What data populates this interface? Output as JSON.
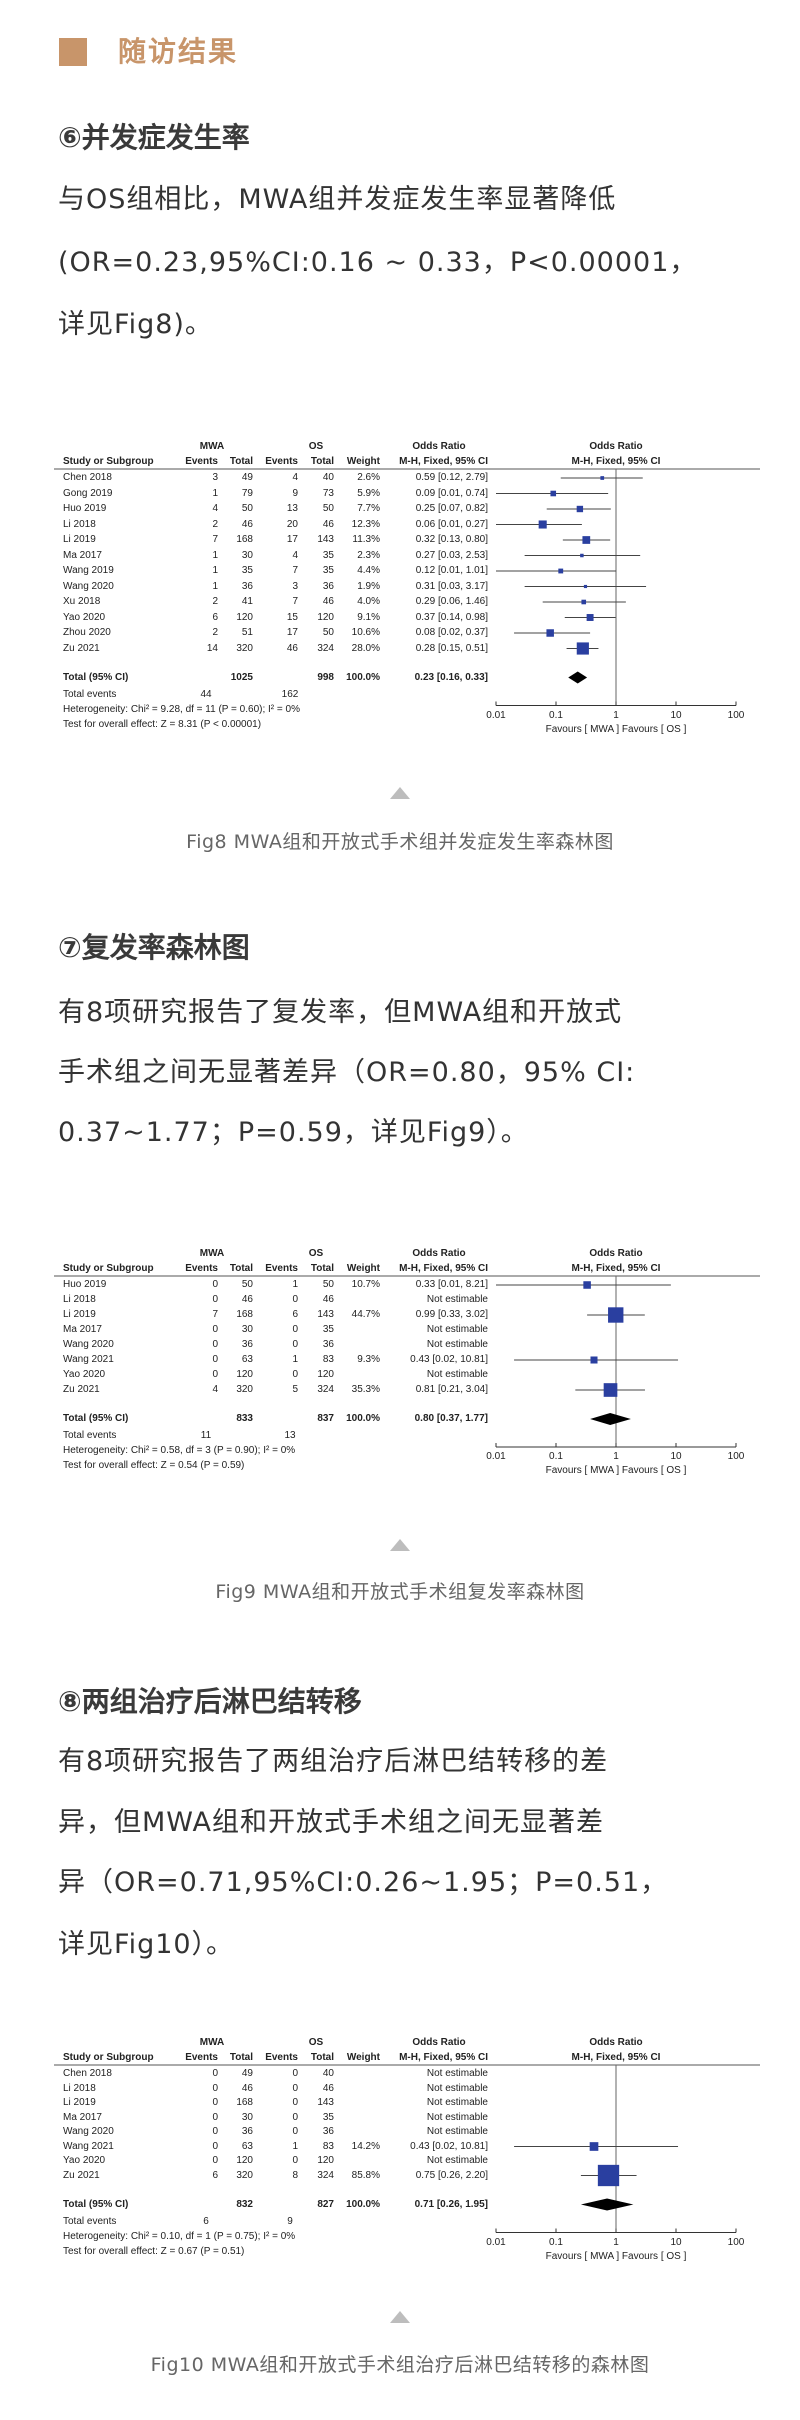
{
  "header": {
    "title": "随访结果",
    "accent_color": "#c8956a"
  },
  "sections": [
    {
      "title": "⑥并发症发生率",
      "lines": [
        "与OS组相比，MWA组并发症发生率显著降低",
        "(OR=0.23,95%CI:0.16 ~ 0.33，P<0.00001，",
        "详见Fig8)。"
      ],
      "caption": "Fig8 MWA组和开放式手术组并发症发生率森林图"
    },
    {
      "title": "⑦复发率森林图",
      "lines": [
        "有8项研究报告了复发率，但MWA组和开放式",
        "手术组之间无显著差异（OR=0.80，95%  CI:",
        "0.37~1.77；P=0.59，详见Fig9）。"
      ],
      "caption": "Fig9 MWA组和开放式手术组复发率森林图"
    },
    {
      "title": "⑧两组治疗后淋巴结转移",
      "lines": [
        "有8项研究报告了两组治疗后淋巴结转移的差",
        "异，但MWA组和开放式手术组之间无显著差",
        "异（OR=0.71,95%CI:0.26~1.95；P=0.51，",
        "详见Fig10）。"
      ],
      "caption": "Fig10 MWA组和开放式手术组治疗后淋巴结转移的森林图"
    }
  ],
  "chart_data": [
    {
      "type": "forest",
      "group_labels": [
        "MWA",
        "OS"
      ],
      "columns": [
        "Study or Subgroup",
        "Events",
        "Total",
        "Events",
        "Total",
        "Weight",
        "M-H, Fixed, 95% CI"
      ],
      "effect_header": "Odds Ratio",
      "plot_header": "M-H, Fixed, 95% CI",
      "x_scale": "log",
      "xlim": [
        0.01,
        100
      ],
      "x_ticks": [
        "0.01",
        "0.1",
        "1",
        "10",
        "100"
      ],
      "favours": "Favours [ MWA ]  Favours [ OS ]",
      "square_color": "#2a3fa0",
      "studies": [
        {
          "name": "Chen 2018",
          "e1": "3",
          "n1": "49",
          "e2": "4",
          "n2": "40",
          "weight": "2.6%",
          "or_text": "0.59 [0.12, 2.79]",
          "or": 0.59,
          "lo": 0.12,
          "hi": 2.79
        },
        {
          "name": "Gong 2019",
          "e1": "1",
          "n1": "79",
          "e2": "9",
          "n2": "73",
          "weight": "5.9%",
          "or_text": "0.09 [0.01, 0.74]",
          "or": 0.09,
          "lo": 0.01,
          "hi": 0.74
        },
        {
          "name": "Huo 2019",
          "e1": "4",
          "n1": "50",
          "e2": "13",
          "n2": "50",
          "weight": "7.7%",
          "or_text": "0.25 [0.07, 0.82]",
          "or": 0.25,
          "lo": 0.07,
          "hi": 0.82
        },
        {
          "name": "Li 2018",
          "e1": "2",
          "n1": "46",
          "e2": "20",
          "n2": "46",
          "weight": "12.3%",
          "or_text": "0.06 [0.01, 0.27]",
          "or": 0.06,
          "lo": 0.01,
          "hi": 0.27
        },
        {
          "name": "Li 2019",
          "e1": "7",
          "n1": "168",
          "e2": "17",
          "n2": "143",
          "weight": "11.3%",
          "or_text": "0.32 [0.13, 0.80]",
          "or": 0.32,
          "lo": 0.13,
          "hi": 0.8
        },
        {
          "name": "Ma 2017",
          "e1": "1",
          "n1": "30",
          "e2": "4",
          "n2": "35",
          "weight": "2.3%",
          "or_text": "0.27 [0.03, 2.53]",
          "or": 0.27,
          "lo": 0.03,
          "hi": 2.53
        },
        {
          "name": "Wang 2019",
          "e1": "1",
          "n1": "35",
          "e2": "7",
          "n2": "35",
          "weight": "4.4%",
          "or_text": "0.12 [0.01, 1.01]",
          "or": 0.12,
          "lo": 0.01,
          "hi": 1.01
        },
        {
          "name": "Wang 2020",
          "e1": "1",
          "n1": "36",
          "e2": "3",
          "n2": "36",
          "weight": "1.9%",
          "or_text": "0.31 [0.03, 3.17]",
          "or": 0.31,
          "lo": 0.03,
          "hi": 3.17
        },
        {
          "name": "Xu 2018",
          "e1": "2",
          "n1": "41",
          "e2": "7",
          "n2": "46",
          "weight": "4.0%",
          "or_text": "0.29 [0.06, 1.46]",
          "or": 0.29,
          "lo": 0.06,
          "hi": 1.46
        },
        {
          "name": "Yao 2020",
          "e1": "6",
          "n1": "120",
          "e2": "15",
          "n2": "120",
          "weight": "9.1%",
          "or_text": "0.37 [0.14, 0.98]",
          "or": 0.37,
          "lo": 0.14,
          "hi": 0.98
        },
        {
          "name": "Zhou 2020",
          "e1": "2",
          "n1": "51",
          "e2": "17",
          "n2": "50",
          "weight": "10.6%",
          "or_text": "0.08 [0.02, 0.37]",
          "or": 0.08,
          "lo": 0.02,
          "hi": 0.37
        },
        {
          "name": "Zu 2021",
          "e1": "14",
          "n1": "320",
          "e2": "46",
          "n2": "324",
          "weight": "28.0%",
          "or_text": "0.28 [0.15, 0.51]",
          "or": 0.28,
          "lo": 0.15,
          "hi": 0.51
        }
      ],
      "total": {
        "label": "Total (95% CI)",
        "n1": "1025",
        "n2": "998",
        "weight": "100.0%",
        "or_text": "0.23 [0.16, 0.33]",
        "or": 0.23,
        "lo": 0.16,
        "hi": 0.33
      },
      "total_events": {
        "label": "Total events",
        "e1": "44",
        "e2": "162"
      },
      "heterogeneity": "Heterogeneity: Chi² = 9.28, df = 11 (P = 0.60); I² = 0%",
      "overall_effect": "Test for overall effect: Z = 8.31 (P < 0.00001)"
    },
    {
      "type": "forest",
      "group_labels": [
        "MWA",
        "OS"
      ],
      "columns": [
        "Study or Subgroup",
        "Events",
        "Total",
        "Events",
        "Total",
        "Weight",
        "M-H, Fixed, 95% CI"
      ],
      "effect_header": "Odds Ratio",
      "plot_header": "M-H, Fixed, 95% CI",
      "x_scale": "log",
      "xlim": [
        0.01,
        100
      ],
      "x_ticks": [
        "0.01",
        "0.1",
        "1",
        "10",
        "100"
      ],
      "favours": "Favours [ MWA ]  Favours [ OS ]",
      "square_color": "#2a3fa0",
      "studies": [
        {
          "name": "Huo 2019",
          "e1": "0",
          "n1": "50",
          "e2": "1",
          "n2": "50",
          "weight": "10.7%",
          "or_text": "0.33 [0.01, 8.21]",
          "or": 0.33,
          "lo": 0.01,
          "hi": 8.21
        },
        {
          "name": "Li 2018",
          "e1": "0",
          "n1": "46",
          "e2": "0",
          "n2": "46",
          "weight": "",
          "or_text": "Not estimable"
        },
        {
          "name": "Li 2019",
          "e1": "7",
          "n1": "168",
          "e2": "6",
          "n2": "143",
          "weight": "44.7%",
          "or_text": "0.99 [0.33, 3.02]",
          "or": 0.99,
          "lo": 0.33,
          "hi": 3.02
        },
        {
          "name": "Ma 2017",
          "e1": "0",
          "n1": "30",
          "e2": "0",
          "n2": "35",
          "weight": "",
          "or_text": "Not estimable"
        },
        {
          "name": "Wang 2020",
          "e1": "0",
          "n1": "36",
          "e2": "0",
          "n2": "36",
          "weight": "",
          "or_text": "Not estimable"
        },
        {
          "name": "Wang 2021",
          "e1": "0",
          "n1": "63",
          "e2": "1",
          "n2": "83",
          "weight": "9.3%",
          "or_text": "0.43 [0.02, 10.81]",
          "or": 0.43,
          "lo": 0.02,
          "hi": 10.81
        },
        {
          "name": "Yao 2020",
          "e1": "0",
          "n1": "120",
          "e2": "0",
          "n2": "120",
          "weight": "",
          "or_text": "Not estimable"
        },
        {
          "name": "Zu 2021",
          "e1": "4",
          "n1": "320",
          "e2": "5",
          "n2": "324",
          "weight": "35.3%",
          "or_text": "0.81 [0.21, 3.04]",
          "or": 0.81,
          "lo": 0.21,
          "hi": 3.04
        }
      ],
      "total": {
        "label": "Total (95% CI)",
        "n1": "833",
        "n2": "837",
        "weight": "100.0%",
        "or_text": "0.80 [0.37, 1.77]",
        "or": 0.8,
        "lo": 0.37,
        "hi": 1.77
      },
      "total_events": {
        "label": "Total events",
        "e1": "11",
        "e2": "13"
      },
      "heterogeneity": "Heterogeneity: Chi² = 0.58, df = 3 (P = 0.90); I² = 0%",
      "overall_effect": "Test for overall effect: Z = 0.54 (P = 0.59)"
    },
    {
      "type": "forest",
      "group_labels": [
        "MWA",
        "OS"
      ],
      "columns": [
        "Study or Subgroup",
        "Events",
        "Total",
        "Events",
        "Total",
        "Weight",
        "M-H, Fixed, 95% CI"
      ],
      "effect_header": "Odds Ratio",
      "plot_header": "M-H, Fixed, 95% CI",
      "x_scale": "log",
      "xlim": [
        0.01,
        100
      ],
      "x_ticks": [
        "0.01",
        "0.1",
        "1",
        "10",
        "100"
      ],
      "favours": "Favours [ MWA ]  Favours [ OS ]",
      "square_color": "#2a3fa0",
      "studies": [
        {
          "name": "Chen 2018",
          "e1": "0",
          "n1": "49",
          "e2": "0",
          "n2": "40",
          "weight": "",
          "or_text": "Not estimable"
        },
        {
          "name": "Li 2018",
          "e1": "0",
          "n1": "46",
          "e2": "0",
          "n2": "46",
          "weight": "",
          "or_text": "Not estimable"
        },
        {
          "name": "Li 2019",
          "e1": "0",
          "n1": "168",
          "e2": "0",
          "n2": "143",
          "weight": "",
          "or_text": "Not estimable"
        },
        {
          "name": "Ma 2017",
          "e1": "0",
          "n1": "30",
          "e2": "0",
          "n2": "35",
          "weight": "",
          "or_text": "Not estimable"
        },
        {
          "name": "Wang 2020",
          "e1": "0",
          "n1": "36",
          "e2": "0",
          "n2": "36",
          "weight": "",
          "or_text": "Not estimable"
        },
        {
          "name": "Wang 2021",
          "e1": "0",
          "n1": "63",
          "e2": "1",
          "n2": "83",
          "weight": "14.2%",
          "or_text": "0.43 [0.02, 10.81]",
          "or": 0.43,
          "lo": 0.02,
          "hi": 10.81
        },
        {
          "name": "Yao 2020",
          "e1": "0",
          "n1": "120",
          "e2": "0",
          "n2": "120",
          "weight": "",
          "or_text": "Not estimable"
        },
        {
          "name": "Zu 2021",
          "e1": "6",
          "n1": "320",
          "e2": "8",
          "n2": "324",
          "weight": "85.8%",
          "or_text": "0.75 [0.26, 2.20]",
          "or": 0.75,
          "lo": 0.26,
          "hi": 2.2
        }
      ],
      "total": {
        "label": "Total (95% CI)",
        "n1": "832",
        "n2": "827",
        "weight": "100.0%",
        "or_text": "0.71 [0.26, 1.95]",
        "or": 0.71,
        "lo": 0.26,
        "hi": 1.95
      },
      "total_events": {
        "label": "Total events",
        "e1": "6",
        "e2": "9"
      },
      "heterogeneity": "Heterogeneity: Chi² = 0.10, df = 1 (P = 0.75); I² = 0%",
      "overall_effect": "Test for overall effect: Z = 0.67 (P = 0.51)"
    }
  ]
}
